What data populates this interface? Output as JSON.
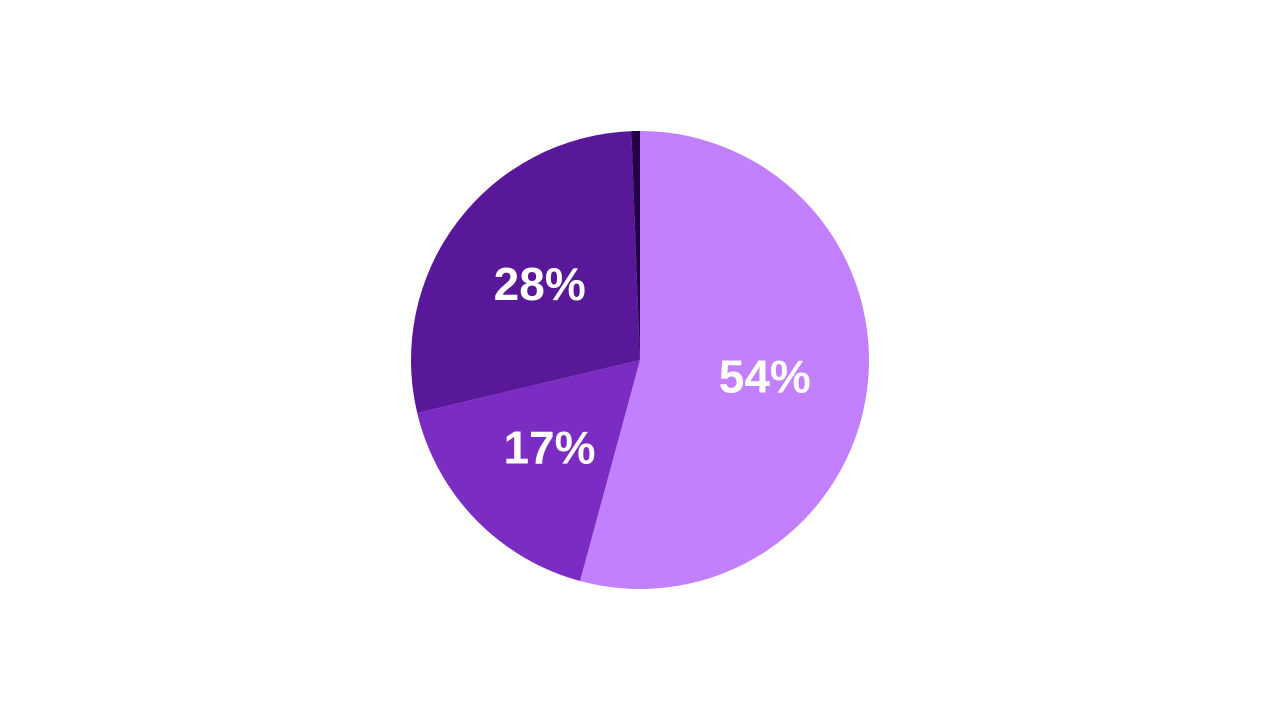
{
  "chart_data": {
    "type": "pie",
    "start_angle_deg": 0,
    "direction": "clockwise",
    "slices": [
      {
        "value": 54,
        "label": "54%",
        "color": "#c27ffe"
      },
      {
        "value": 17,
        "label": "17%",
        "color": "#7b2cc2"
      },
      {
        "value": 28,
        "label": "28%",
        "color": "#59189a"
      },
      {
        "value": 0.6,
        "label": "",
        "color": "#240046"
      }
    ]
  }
}
